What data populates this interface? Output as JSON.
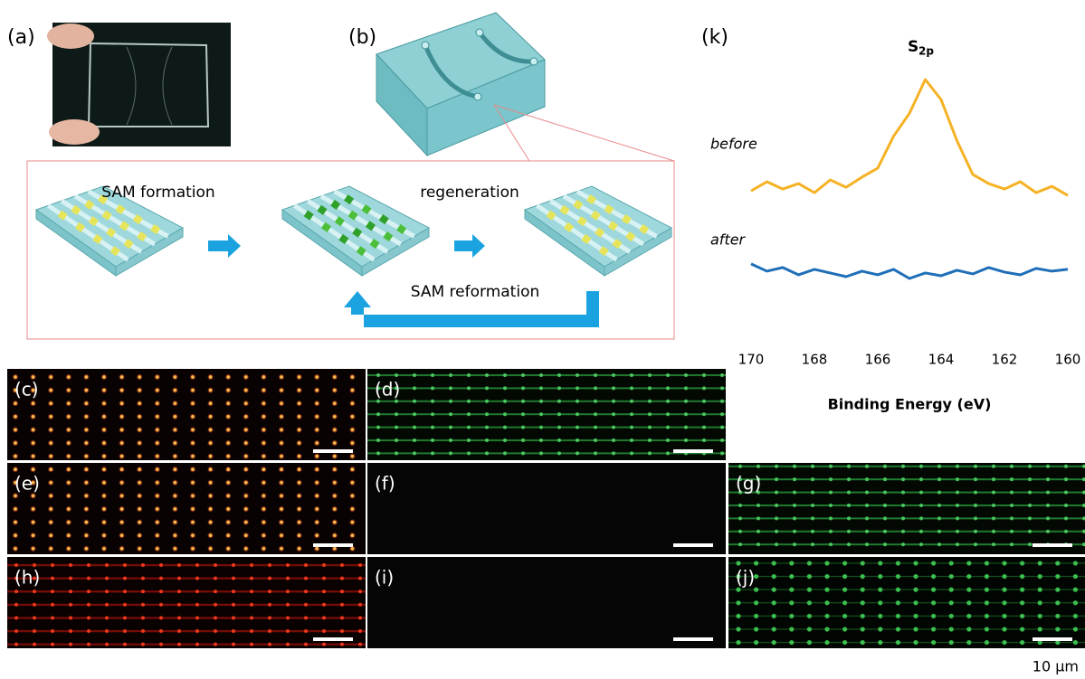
{
  "panel_labels": [
    "(a)",
    "(b)",
    "(c)",
    "(d)",
    "(e)",
    "(f)",
    "(g)",
    "(h)",
    "(i)",
    "(j)",
    "(k)"
  ],
  "schematic": {
    "step1": "SAM formation",
    "step2": "regeneration",
    "step3": "SAM reformation"
  },
  "scale_bar": "10 µm",
  "chart_data": {
    "type": "line",
    "title": "S",
    "title_subscript": "2p",
    "x_label": "Binding Energy (eV)",
    "x": [
      170,
      169.5,
      169,
      168.5,
      168,
      167.5,
      167,
      166.5,
      166,
      165.5,
      165,
      164.5,
      164,
      163.5,
      163,
      162.5,
      162,
      161.5,
      161,
      160.5,
      160
    ],
    "xlim": [
      170,
      160
    ],
    "xticks": [
      170,
      168,
      166,
      164,
      162,
      160
    ],
    "series": [
      {
        "name": "before",
        "color": "#f5b225",
        "values": [
          110,
          120,
          112,
          118,
          108,
          122,
          114,
          125,
          135,
          170,
          195,
          232,
          210,
          165,
          128,
          118,
          112,
          120,
          108,
          115,
          105
        ]
      },
      {
        "name": "after",
        "color": "#1f6fb8",
        "values": [
          30,
          22,
          26,
          18,
          24,
          20,
          16,
          22,
          18,
          24,
          14,
          20,
          17,
          23,
          19,
          26,
          21,
          18,
          25,
          22,
          24
        ]
      }
    ]
  }
}
